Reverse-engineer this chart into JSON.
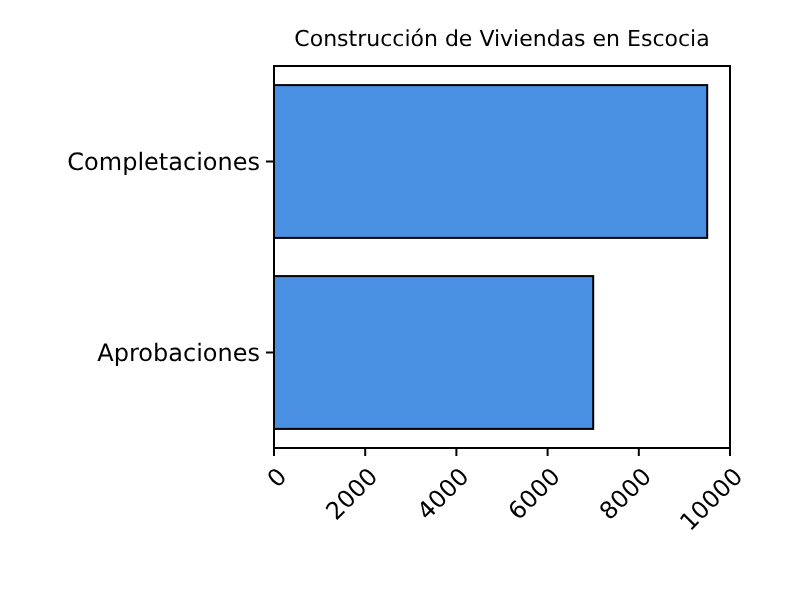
{
  "chart_data": {
    "type": "bar",
    "orientation": "horizontal",
    "title": "Construcción de Viviendas en Escocia",
    "categories": [
      "Completaciones",
      "Aprobaciones"
    ],
    "values": [
      9500,
      7000
    ],
    "color": "#4a90e2",
    "xlim": [
      0,
      10000
    ],
    "xticks": [
      0,
      2000,
      4000,
      6000,
      8000,
      10000
    ],
    "grid": false
  }
}
